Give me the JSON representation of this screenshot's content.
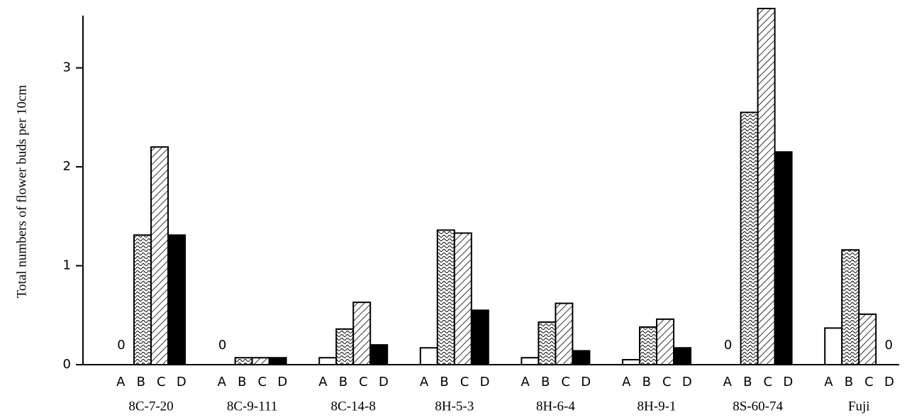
{
  "chart_data": {
    "type": "bar",
    "y_label": "Total numbers of flower buds per 10cm",
    "categories": [
      "8C-7-20",
      "8C-9-111",
      "8C-14-8",
      "8H-5-3",
      "8H-6-4",
      "8H-9-1",
      "8S-60-74",
      "Fuji"
    ],
    "series": [
      {
        "name": "A",
        "color": "#ffffff",
        "pattern": "none",
        "values": [
          0,
          0,
          0.07,
          0.17,
          0.07,
          0.05,
          0,
          0.37
        ]
      },
      {
        "name": "B",
        "color": "#ffffff",
        "pattern": "wave",
        "values": [
          1.31,
          0.07,
          0.36,
          1.36,
          0.43,
          0.38,
          2.55,
          1.16
        ]
      },
      {
        "name": "C",
        "color": "#ffffff",
        "pattern": "hatch",
        "values": [
          2.2,
          0.07,
          0.63,
          1.33,
          0.62,
          0.46,
          3.6,
          0.51
        ]
      },
      {
        "name": "D",
        "color": "#000000",
        "pattern": "none",
        "values": [
          1.31,
          0.07,
          0.2,
          0.55,
          0.14,
          0.17,
          2.15,
          0
        ]
      }
    ],
    "ylim": [
      0,
      3.6
    ],
    "yticks": [
      0,
      1,
      2,
      3
    ]
  }
}
